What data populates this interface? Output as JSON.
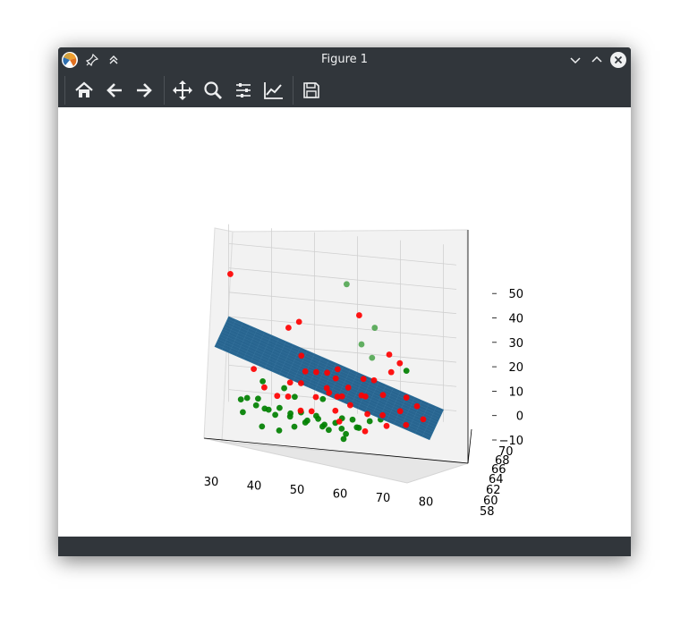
{
  "window": {
    "title": "Figure 1"
  },
  "toolbar": {
    "tools": [
      "home-icon",
      "back-arrow-icon",
      "forward-arrow-icon",
      "pan-icon",
      "zoom-icon",
      "configure-subplots-icon",
      "edit-axis-icon",
      "save-icon"
    ]
  },
  "colors": {
    "surface": "#1f5f8b",
    "surface_grid": "#4a87b0",
    "red_points": "#ff0000",
    "green_points": "#008000",
    "titlebar": "#31363b"
  },
  "chart_data": {
    "type": "scatter",
    "x_axis": {
      "ticks": [
        "30",
        "40",
        "50",
        "60",
        "70",
        "80"
      ],
      "range": [
        27,
        83
      ]
    },
    "y_axis": {
      "ticks": [
        "58",
        "60",
        "62",
        "64",
        "66",
        "68",
        "70"
      ],
      "range": [
        57,
        71
      ]
    },
    "z_axis": {
      "ticks": [
        "−10",
        "0",
        "10",
        "20",
        "30",
        "40",
        "50"
      ],
      "range": [
        -15,
        55
      ]
    },
    "surface": {
      "type": "plane",
      "x_range": [
        30,
        80
      ],
      "y_range": [
        58,
        70
      ],
      "z_at_x30": 20,
      "z_at_x80": -10
    },
    "series": [
      {
        "color": "red",
        "points": [
          [
            32,
            64,
            44
          ],
          [
            45,
            66,
            22
          ],
          [
            48,
            64,
            27
          ],
          [
            70,
            62,
            12
          ],
          [
            62,
            64,
            32
          ],
          [
            69,
            64,
            17
          ],
          [
            72,
            62,
            16
          ],
          [
            38,
            62,
            8
          ],
          [
            47,
            60,
            6
          ],
          [
            50,
            62,
            9
          ],
          [
            52,
            64,
            7
          ],
          [
            55,
            62,
            3
          ],
          [
            58,
            60,
            2
          ],
          [
            60,
            62,
            4
          ],
          [
            63,
            64,
            6
          ],
          [
            66,
            62,
            8
          ],
          [
            54,
            66,
            5
          ],
          [
            57,
            64,
            9
          ],
          [
            49,
            62,
            4
          ],
          [
            53,
            60,
            1
          ],
          [
            56,
            66,
            3
          ],
          [
            61,
            60,
            -1
          ],
          [
            64,
            62,
            1
          ],
          [
            67,
            66,
            -2
          ],
          [
            73,
            64,
            0
          ],
          [
            76,
            62,
            -1
          ],
          [
            78,
            60,
            -4
          ],
          [
            44,
            60,
            0
          ],
          [
            50,
            58,
            -3
          ],
          [
            58,
            64,
            -2
          ],
          [
            65,
            60,
            -4
          ],
          [
            70,
            58,
            -6
          ],
          [
            74,
            60,
            -7
          ],
          [
            46,
            62,
            -2
          ],
          [
            52,
            60,
            -5
          ],
          [
            59,
            58,
            -6
          ],
          [
            62,
            66,
            -3
          ],
          [
            68,
            62,
            -6
          ],
          [
            55,
            64,
            -1
          ],
          [
            48,
            66,
            11
          ],
          [
            41,
            60,
            3
          ],
          [
            71,
            66,
            -8
          ],
          [
            65,
            58,
            -9
          ],
          [
            57,
            62,
            -6
          ]
        ]
      },
      {
        "color": "green",
        "points": [
          [
            58,
            68,
            40
          ],
          [
            62,
            66,
            18
          ],
          [
            65,
            64,
            15
          ],
          [
            73,
            64,
            11
          ],
          [
            64,
            70,
            21
          ],
          [
            37,
            60,
            -2
          ],
          [
            39,
            62,
            -4
          ],
          [
            42,
            60,
            -6
          ],
          [
            44,
            62,
            -7
          ],
          [
            47,
            60,
            -8
          ],
          [
            49,
            62,
            -8
          ],
          [
            51,
            60,
            -9
          ],
          [
            53,
            62,
            -10
          ],
          [
            55,
            60,
            -10
          ],
          [
            57,
            62,
            -11
          ],
          [
            59,
            60,
            -11
          ],
          [
            61,
            62,
            -9
          ],
          [
            63,
            60,
            -10
          ],
          [
            65,
            62,
            -9
          ],
          [
            40,
            64,
            -10
          ],
          [
            43,
            62,
            -10
          ],
          [
            46,
            64,
            -11
          ],
          [
            48,
            60,
            -12
          ],
          [
            50,
            62,
            -12
          ],
          [
            52,
            64,
            -11
          ],
          [
            54,
            62,
            -13
          ],
          [
            56,
            60,
            -12
          ],
          [
            58,
            64,
            -11
          ],
          [
            60,
            60,
            -13
          ],
          [
            62,
            62,
            -12
          ],
          [
            35,
            62,
            -5
          ],
          [
            36,
            60,
            -8
          ],
          [
            38,
            64,
            -9
          ],
          [
            41,
            58,
            -11
          ],
          [
            45,
            58,
            -12
          ],
          [
            60,
            58,
            -13
          ],
          [
            47,
            64,
            -4
          ],
          [
            53,
            66,
            -6
          ],
          [
            44,
            66,
            -3
          ],
          [
            39,
            66,
            -1
          ],
          [
            67,
            64,
            -10
          ]
        ]
      }
    ]
  }
}
